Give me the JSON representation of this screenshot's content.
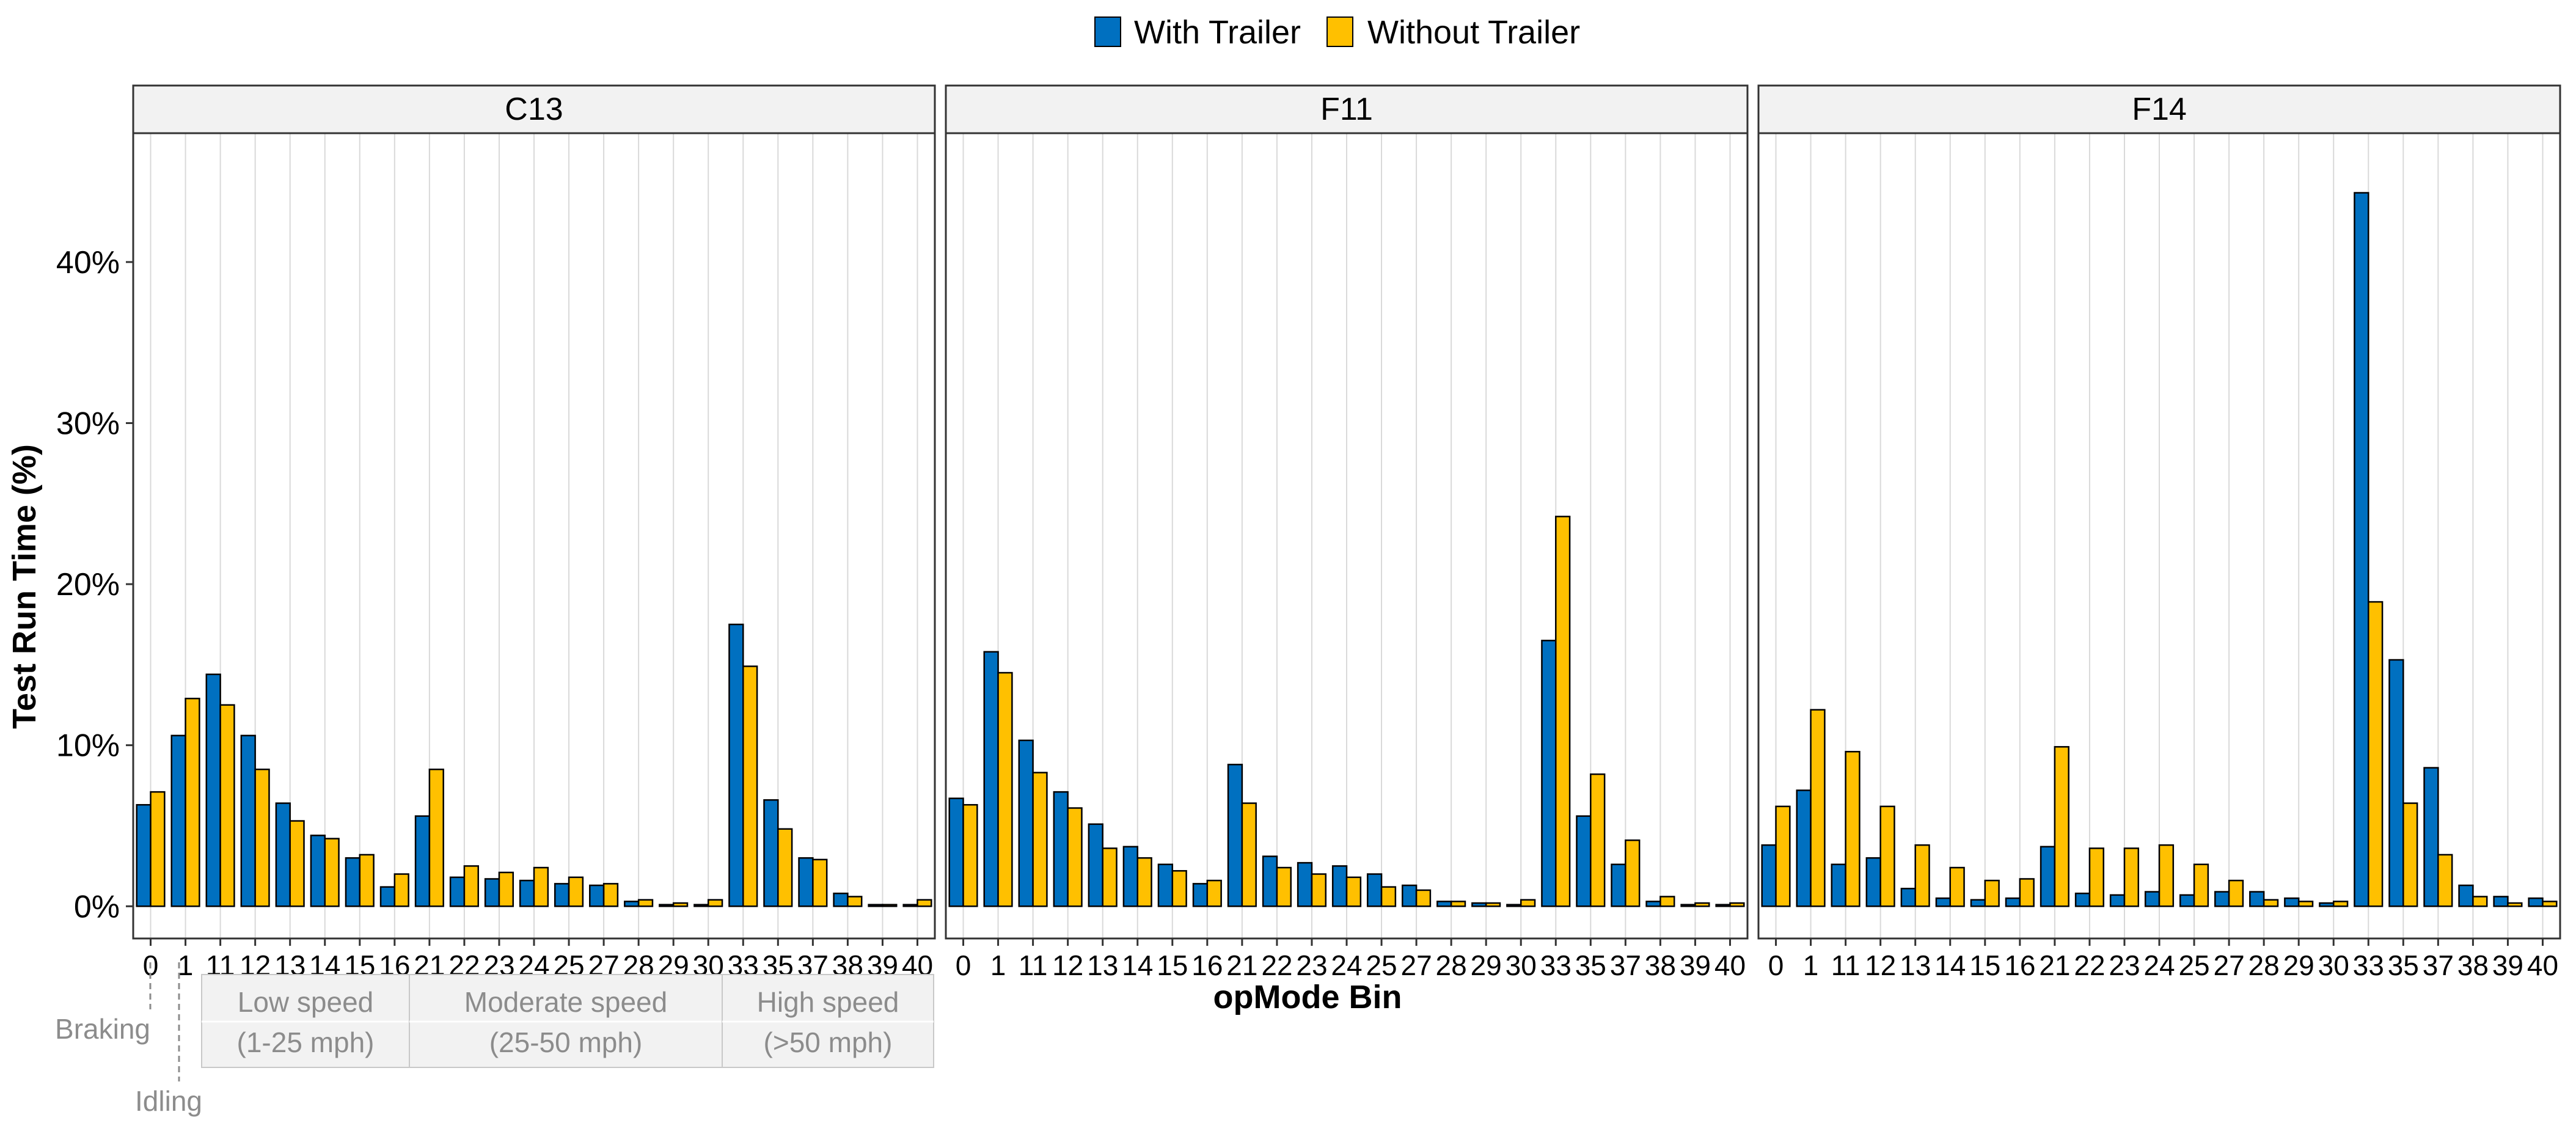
{
  "legend": {
    "items": [
      {
        "label": "With Trailer",
        "color": "#0070C0"
      },
      {
        "label": "Without Trailer",
        "color": "#FFC000"
      }
    ],
    "placement": "top-center"
  },
  "annotations": {
    "braking": "Braking",
    "idling": "Idling",
    "groups": [
      {
        "line1": "Low speed",
        "line2": "(1-25 mph)"
      },
      {
        "line1": "Moderate speed",
        "line2": "(25-50 mph)"
      },
      {
        "line1": "High speed",
        "line2": "(>50 mph)"
      }
    ]
  },
  "colors": {
    "with_trailer": "#0070C0",
    "without_trailer": "#FFC000",
    "panel_header_bg": "#F2F2F2",
    "gridline": "#D9D9D9",
    "annotation_text": "#8C8C8C"
  },
  "chart_data": {
    "type": "bar",
    "ylabel": "Test Run Time (%)",
    "xlabel": "opMode Bin",
    "ylim": [
      -2,
      48
    ],
    "yticks": [
      0,
      10,
      20,
      30,
      40
    ],
    "ytick_labels": [
      "0%",
      "10%",
      "20%",
      "30%",
      "40%"
    ],
    "grid": "vertical",
    "categories": [
      "0",
      "1",
      "11",
      "12",
      "13",
      "14",
      "15",
      "16",
      "21",
      "22",
      "23",
      "24",
      "25",
      "27",
      "28",
      "29",
      "30",
      "33",
      "35",
      "37",
      "38",
      "39",
      "40"
    ],
    "panels": [
      {
        "title": "C13",
        "series": [
          {
            "name": "With Trailer",
            "values": [
              6.3,
              10.6,
              14.4,
              10.6,
              6.4,
              4.4,
              3.0,
              1.2,
              5.6,
              1.8,
              1.7,
              1.6,
              1.4,
              1.3,
              0.3,
              0.1,
              0.1,
              17.5,
              6.6,
              3.0,
              0.8,
              0.1,
              0.1
            ]
          },
          {
            "name": "Without Trailer",
            "values": [
              7.1,
              12.9,
              12.5,
              8.5,
              5.3,
              4.2,
              3.2,
              2.0,
              8.5,
              2.5,
              2.1,
              2.4,
              1.8,
              1.4,
              0.4,
              0.2,
              0.4,
              14.9,
              4.8,
              2.9,
              0.6,
              0.1,
              0.4
            ]
          }
        ]
      },
      {
        "title": "F11",
        "series": [
          {
            "name": "With Trailer",
            "values": [
              6.7,
              15.8,
              10.3,
              7.1,
              5.1,
              3.7,
              2.6,
              1.4,
              8.8,
              3.1,
              2.7,
              2.5,
              2.0,
              1.3,
              0.3,
              0.2,
              0.1,
              16.5,
              5.6,
              2.6,
              0.3,
              0.1,
              0.1
            ]
          },
          {
            "name": "Without Trailer",
            "values": [
              6.3,
              14.5,
              8.3,
              6.1,
              3.6,
              3.0,
              2.2,
              1.6,
              6.4,
              2.4,
              2.0,
              1.8,
              1.2,
              1.0,
              0.3,
              0.2,
              0.4,
              24.2,
              8.2,
              4.1,
              0.6,
              0.2,
              0.2
            ]
          }
        ]
      },
      {
        "title": "F14",
        "series": [
          {
            "name": "With Trailer",
            "values": [
              3.8,
              7.2,
              2.6,
              3.0,
              1.1,
              0.5,
              0.4,
              0.5,
              3.7,
              0.8,
              0.7,
              0.9,
              0.7,
              0.9,
              0.9,
              0.5,
              0.2,
              44.3,
              15.3,
              8.6,
              1.3,
              0.6,
              0.5
            ]
          },
          {
            "name": "Without Trailer",
            "values": [
              6.2,
              12.2,
              9.6,
              6.2,
              3.8,
              2.4,
              1.6,
              1.7,
              9.9,
              3.6,
              3.6,
              3.8,
              2.6,
              1.6,
              0.4,
              0.3,
              0.3,
              18.9,
              6.4,
              3.2,
              0.6,
              0.2,
              0.3
            ]
          }
        ]
      }
    ]
  }
}
